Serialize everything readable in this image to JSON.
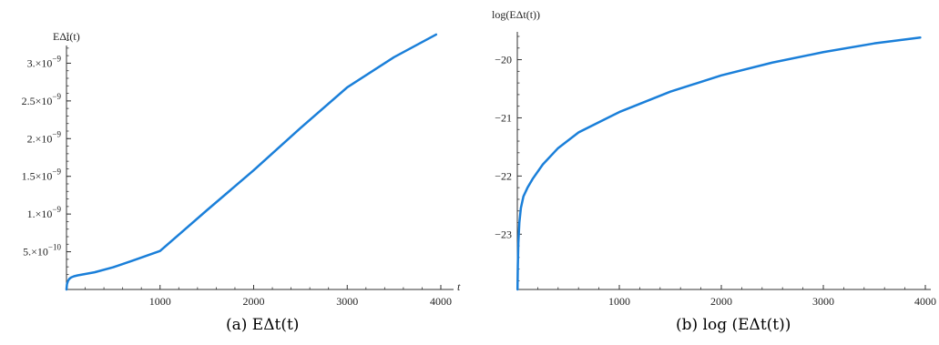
{
  "chart_data": [
    {
      "type": "line",
      "caption": "(a) EΔt(t)",
      "ylabel": "EΔt(t)",
      "xlabel": "t",
      "xlim": [
        0,
        4000
      ],
      "ylim": [
        0,
        3.5e-09
      ],
      "x_ticks": [
        1000,
        2000,
        3000,
        4000
      ],
      "y_ticks": [
        {
          "value": 5e-10,
          "mantissa": "5.",
          "exp": "−10"
        },
        {
          "value": 1e-09,
          "mantissa": "1.",
          "exp": "−9"
        },
        {
          "value": 1.5e-09,
          "mantissa": "1.5",
          "exp": "−9"
        },
        {
          "value": 2e-09,
          "mantissa": "2.",
          "exp": "−9"
        },
        {
          "value": 2.5e-09,
          "mantissa": "2.5",
          "exp": "−9"
        },
        {
          "value": 3e-09,
          "mantissa": "3.",
          "exp": "−9"
        }
      ],
      "color": "#1a7fd9",
      "series": [
        {
          "x": [
            0,
            5,
            15,
            30,
            50,
            80,
            120,
            200,
            300,
            500,
            700,
            1000,
            1500,
            2000,
            2500,
            3000,
            3500,
            3950
          ],
          "y": [
            0,
            7e-11,
            1.1e-10,
            1.4e-10,
            1.6e-10,
            1.75e-10,
            1.87e-10,
            2.05e-10,
            2.28e-10,
            2.95e-10,
            3.8e-10,
            5.1e-10,
            1.05e-09,
            1.58e-09,
            2.14e-09,
            2.68e-09,
            3.08e-09,
            3.38e-09
          ]
        }
      ]
    },
    {
      "type": "line",
      "caption": "(b) log (EΔt(t))",
      "ylabel": "log(EΔt(t))",
      "xlabel": "",
      "xlim": [
        0,
        4000
      ],
      "ylim": [
        -23.95,
        -19.6
      ],
      "x_ticks": [
        1000,
        2000,
        3000,
        4000
      ],
      "y_ticks": [
        {
          "value": -23,
          "label": "−23"
        },
        {
          "value": -22,
          "label": "−22"
        },
        {
          "value": -21,
          "label": "−21"
        },
        {
          "value": -20,
          "label": "−20"
        }
      ],
      "color": "#1a7fd9",
      "series": [
        {
          "x": [
            2,
            5,
            10,
            20,
            35,
            60,
            100,
            150,
            250,
            400,
            600,
            1000,
            1500,
            2000,
            2500,
            3000,
            3500,
            3950
          ],
          "y": [
            -23.95,
            -23.55,
            -23.15,
            -22.8,
            -22.55,
            -22.35,
            -22.2,
            -22.05,
            -21.8,
            -21.52,
            -21.25,
            -20.9,
            -20.55,
            -20.27,
            -20.05,
            -19.87,
            -19.72,
            -19.62
          ]
        }
      ]
    }
  ]
}
